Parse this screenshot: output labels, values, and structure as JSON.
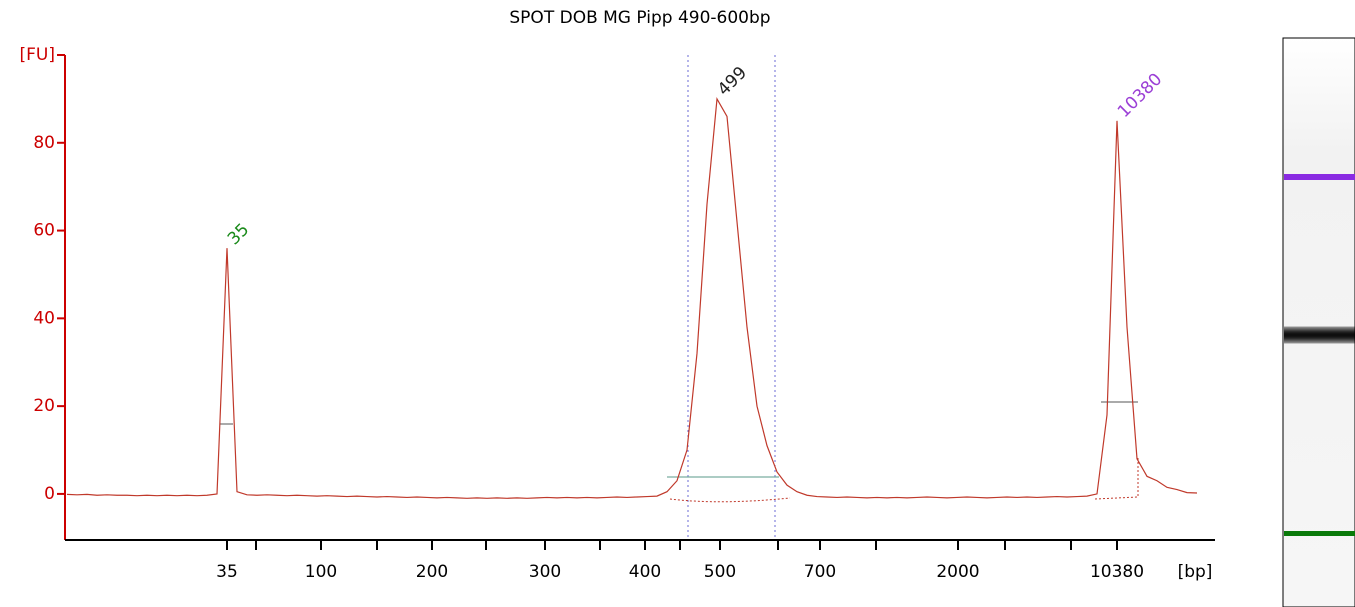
{
  "chart_data": {
    "type": "line",
    "title": "SPOT DOB MG Pipp 490-600bp",
    "x_unit": "[bp]",
    "xticks": [
      35,
      100,
      200,
      300,
      400,
      500,
      700,
      2000,
      10380
    ],
    "values": [
      -0.1,
      -0.2,
      -0.1,
      -0.3,
      -0.2,
      -0.3,
      -0.3,
      -0.4,
      -0.3,
      -0.4,
      -0.3,
      -0.4,
      -0.3,
      -0.4,
      -0.3,
      0,
      56,
      0.5,
      -0.2,
      -0.3,
      -0.2,
      -0.3,
      -0.4,
      -0.3,
      -0.4,
      -0.5,
      -0.4,
      -0.5,
      -0.6,
      -0.5,
      -0.6,
      -0.7,
      -0.6,
      -0.7,
      -0.8,
      -0.7,
      -0.8,
      -0.9,
      -0.8,
      -0.9,
      -1.0,
      -0.9,
      -1.0,
      -0.9,
      -1.0,
      -0.9,
      -1.0,
      -0.9,
      -0.8,
      -0.9,
      -0.8,
      -0.9,
      -0.8,
      -0.9,
      -0.8,
      -0.7,
      -0.8,
      -0.7,
      -0.6,
      -0.5,
      0.5,
      3,
      10,
      32,
      66,
      90,
      86,
      62,
      38,
      20,
      11,
      5,
      2,
      0.5,
      -0.3,
      -0.6,
      -0.7,
      -0.8,
      -0.7,
      -0.8,
      -0.9,
      -0.8,
      -0.9,
      -0.8,
      -0.9,
      -0.8,
      -0.7,
      -0.8,
      -0.9,
      -0.8,
      -0.7,
      -0.8,
      -0.9,
      -0.8,
      -0.7,
      -0.8,
      -0.7,
      -0.8,
      -0.7,
      -0.6,
      -0.7,
      -0.6,
      -0.5,
      0,
      18,
      85,
      38,
      8,
      4,
      3,
      1.5,
      1,
      0.3,
      0.2
    ],
    "color": "#c0392b",
    "peak_labels": [
      {
        "text": "35",
        "color": "#1a8a1a"
      },
      {
        "text": "499",
        "color": "#222222"
      },
      {
        "text": "10380",
        "color": "#9b3fd6"
      }
    ],
    "ylim": [
      -10.5,
      100
    ],
    "yticks": [
      0,
      20,
      40,
      60,
      80,
      {
        "value": 100,
        "label": "[FU]"
      }
    ],
    "axis_color": "#cc0000"
  }
}
